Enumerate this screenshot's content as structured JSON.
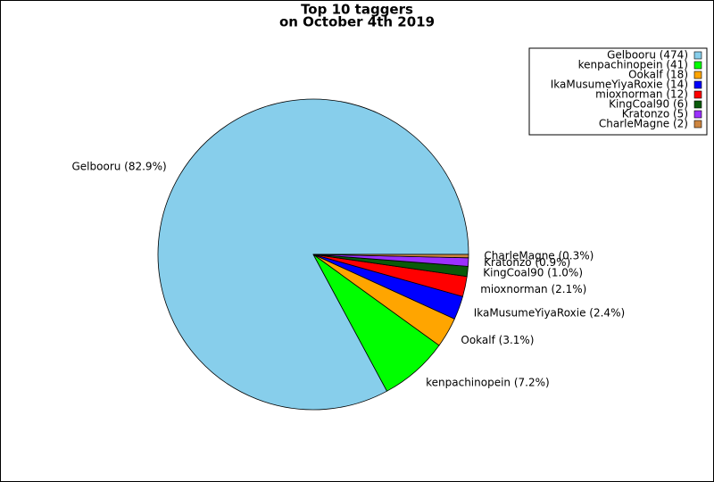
{
  "chart_data": {
    "type": "pie",
    "title": "Top 10 taggers",
    "subtitle": "on October 4th 2019",
    "categories": [
      "Gelbooru (474)",
      "kenpachinopein (41)",
      "Ookalf (18)",
      "IkaMusumeYiyaRoxie (14)",
      "mioxnorman (12)",
      "KingCoal90 (6)",
      "Kratonzo (5)",
      "CharleMagne (2)"
    ],
    "values": [
      474,
      41,
      18,
      14,
      12,
      6,
      5,
      2
    ],
    "value_labels": [
      "Gelbooru (82.9%)",
      "kenpachinopein (7.2%)",
      "Ookalf (3.1%)",
      "IkaMusumeYiyaRoxie (2.4%)",
      "mioxnorman (2.1%)",
      "KingCoal90 (1.0%)",
      "Kratonzo (0.9%)",
      "CharleMagne (0.3%)"
    ],
    "colors": [
      "#87ceeb",
      "#00ff00",
      "#ffa500",
      "#0000ff",
      "#ff0000",
      "#0a5a0a",
      "#9b30ff",
      "#cd853f"
    ],
    "legend": "upper right"
  }
}
